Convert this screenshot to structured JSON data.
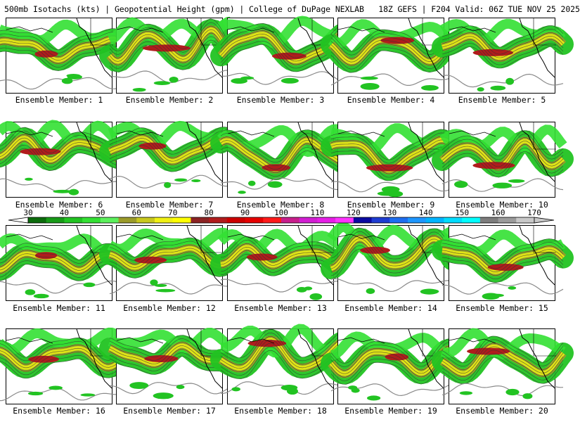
{
  "header": {
    "title": "500mb Isotachs (kts) | Geopotential Height (gpm) | College of DuPage NEXLAB   18Z GEFS | F204 Valid: 06Z TUE NOV 25 2025"
  },
  "colorbar": {
    "tick_labels": [
      "30",
      "40",
      "50",
      "60",
      "70",
      "80",
      "90",
      "100",
      "110",
      "120",
      "130",
      "140",
      "150",
      "160",
      "170"
    ],
    "colors": [
      "#0b6b0b",
      "#179a17",
      "#22c322",
      "#33e033",
      "#5cf05c",
      "#9b9b2a",
      "#c8c81e",
      "#f0f014",
      "#ffff00",
      "#8b2323",
      "#b01c1c",
      "#cc0000",
      "#e60000",
      "#ff1a1a",
      "#c81e8c",
      "#d21ed2",
      "#e61ee6",
      "#ff33ff",
      "#0a0aa0",
      "#1e3cd2",
      "#1e6ef0",
      "#1e96ff",
      "#00b4ff",
      "#00dcff",
      "#00ffff",
      "#7d7d7d",
      "#9b9b9b",
      "#c8c8c8"
    ],
    "units": "kts"
  },
  "panels": [
    {
      "label": "Ensemble Member: 1"
    },
    {
      "label": "Ensemble Member: 2"
    },
    {
      "label": "Ensemble Member: 3"
    },
    {
      "label": "Ensemble Member: 4"
    },
    {
      "label": "Ensemble Member: 5"
    },
    {
      "label": "Ensemble Member: 6"
    },
    {
      "label": "Ensemble Member: 7"
    },
    {
      "label": "Ensemble Member: 8"
    },
    {
      "label": "Ensemble Member: 9"
    },
    {
      "label": "Ensemble Member: 10"
    },
    {
      "label": "Ensemble Member: 11"
    },
    {
      "label": "Ensemble Member: 12"
    },
    {
      "label": "Ensemble Member: 13"
    },
    {
      "label": "Ensemble Member: 14"
    },
    {
      "label": "Ensemble Member: 15"
    },
    {
      "label": "Ensemble Member: 16"
    },
    {
      "label": "Ensemble Member: 17"
    },
    {
      "label": "Ensemble Member: 18"
    },
    {
      "label": "Ensemble Member: 19"
    },
    {
      "label": "Ensemble Member: 20"
    }
  ]
}
